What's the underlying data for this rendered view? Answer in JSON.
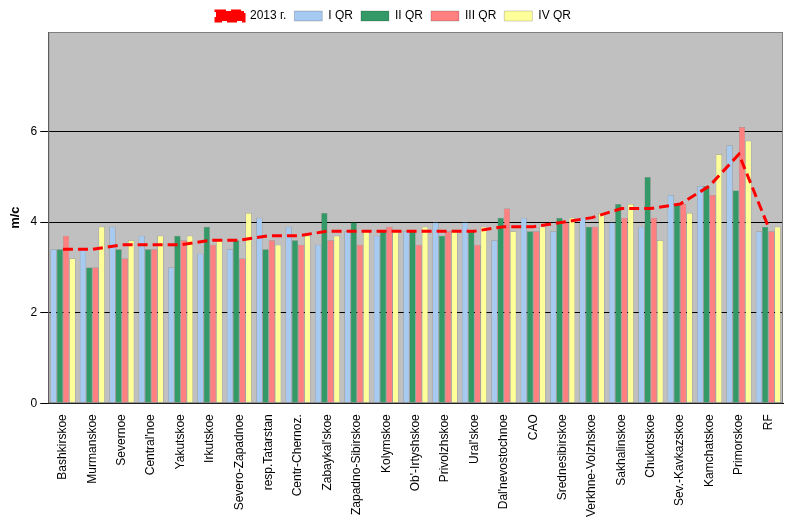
{
  "chart_data": {
    "type": "bar",
    "y_label": "m/c",
    "categories": [
      "Bashkirskoe",
      "Murmanskoe",
      "Severnoe",
      "Central'noe",
      "Yakutskoe",
      "Irkutskoe",
      "Severo-Zapadnoe",
      "resp.Tatarstan",
      "Centr-Chernoz.",
      "Zabaykal'skoe",
      "Zapadno-Sibirskoe",
      "Kolymskoe",
      "Ob'-Irtyshskoe",
      "Privolzhskoe",
      "Ural'skoe",
      "Dal'nevostochnoe",
      "CAO",
      "Srednesibirskoe",
      "Verkhne-Volzhskoe",
      "Sakhalinskoe",
      "Chukotskoe",
      "Sev.-Kavkazskoe",
      "Kamchatskoe",
      "Primorskoe",
      "RF"
    ],
    "series": [
      {
        "name": "I QR",
        "color": "#a6caf0",
        "values": [
          3.4,
          3.4,
          3.9,
          3.7,
          3.0,
          3.3,
          3.4,
          4.1,
          3.9,
          3.5,
          3.8,
          3.7,
          3.8,
          4.0,
          4.0,
          3.6,
          4.1,
          3.8,
          4.1,
          4.0,
          3.9,
          4.6,
          4.8,
          5.7,
          3.8
        ]
      },
      {
        "name": "II QR",
        "color": "#339966",
        "values": [
          3.4,
          3.0,
          3.4,
          3.4,
          3.7,
          3.9,
          3.6,
          3.4,
          3.6,
          4.2,
          4.0,
          3.8,
          3.8,
          3.7,
          3.8,
          4.1,
          3.8,
          4.1,
          3.9,
          4.4,
          5.0,
          4.4,
          4.8,
          4.7,
          3.9
        ]
      },
      {
        "name": "III QR",
        "color": "#ff8080",
        "values": [
          3.7,
          3.0,
          3.2,
          3.4,
          3.6,
          3.5,
          3.2,
          3.6,
          3.5,
          3.6,
          3.5,
          3.9,
          3.5,
          3.8,
          3.5,
          4.3,
          3.8,
          4.0,
          3.9,
          4.1,
          4.1,
          4.4,
          4.6,
          6.1,
          3.8
        ]
      },
      {
        "name": "IV QR",
        "color": "#ffff99",
        "values": [
          3.2,
          3.9,
          3.6,
          3.7,
          3.7,
          3.6,
          4.2,
          3.5,
          3.7,
          3.7,
          3.8,
          3.8,
          3.9,
          3.8,
          3.9,
          3.8,
          3.9,
          4.1,
          4.2,
          4.4,
          3.6,
          4.2,
          5.5,
          5.8,
          3.9
        ]
      },
      {
        "name": "2013 г.",
        "type": "line",
        "color": "#ff0000",
        "line_style": "dashed",
        "marker": "none",
        "values": [
          3.4,
          3.4,
          3.5,
          3.5,
          3.5,
          3.6,
          3.6,
          3.7,
          3.7,
          3.8,
          3.8,
          3.8,
          3.8,
          3.8,
          3.8,
          3.9,
          3.9,
          4.0,
          4.1,
          4.3,
          4.3,
          4.4,
          4.8,
          5.5,
          3.9
        ]
      }
    ],
    "ylim": [
      0,
      8.2
    ],
    "yticks": [
      0,
      2,
      4,
      6
    ],
    "grid": true,
    "legend": "top"
  }
}
